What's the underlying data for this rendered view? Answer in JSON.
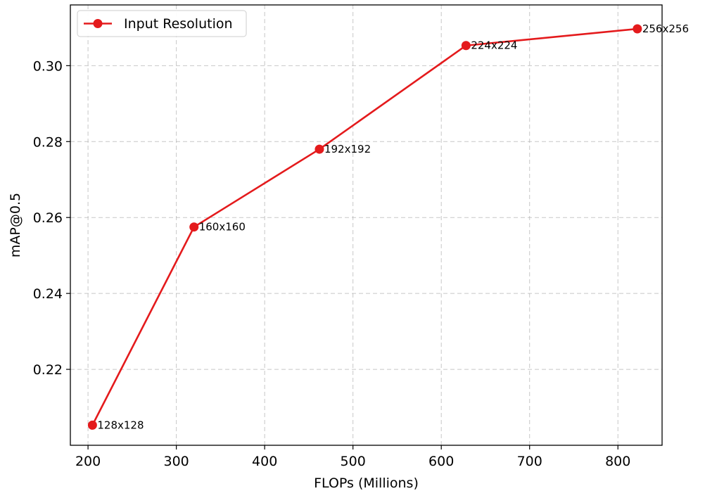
{
  "chart_data": {
    "type": "line",
    "title": "",
    "xlabel": "FLOPs (Millions)",
    "ylabel": "mAP@0.5",
    "xlim": [
      180,
      850
    ],
    "ylim": [
      0.2,
      0.316
    ],
    "xticks": [
      200,
      300,
      400,
      500,
      600,
      700,
      800
    ],
    "yticks": [
      0.22,
      0.24,
      0.26,
      0.28,
      0.3
    ],
    "xtick_labels": [
      "200",
      "300",
      "400",
      "500",
      "600",
      "700",
      "800"
    ],
    "ytick_labels": [
      "0.22",
      "0.24",
      "0.26",
      "0.28",
      "0.30"
    ],
    "grid": true,
    "legend": {
      "position": "top-left",
      "entries": [
        "Input Resolution"
      ]
    },
    "series": [
      {
        "name": "Input Resolution",
        "color": "#e41a1c",
        "marker": "circle",
        "points": [
          {
            "x": 205,
            "y": 0.2053,
            "label": "128x128"
          },
          {
            "x": 320,
            "y": 0.2575,
            "label": "160x160"
          },
          {
            "x": 462,
            "y": 0.278,
            "label": "192x192"
          },
          {
            "x": 628,
            "y": 0.3053,
            "label": "224x224"
          },
          {
            "x": 822,
            "y": 0.3097,
            "label": "256x256"
          }
        ]
      }
    ]
  }
}
